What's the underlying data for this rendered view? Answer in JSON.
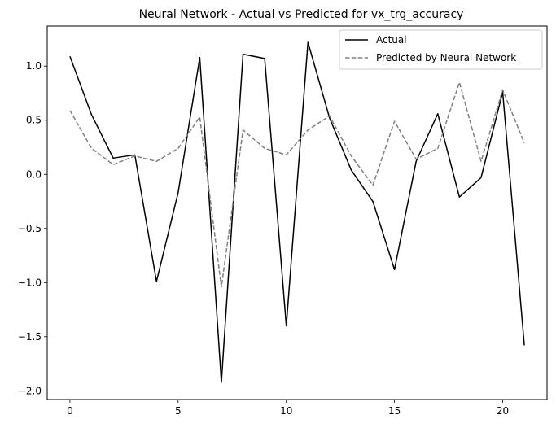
{
  "chart_data": {
    "type": "line",
    "title": "Neural Network - Actual vs Predicted for vx_trg_accuracy",
    "xlabel": "",
    "ylabel": "",
    "xlim": [
      -1.05,
      22.05
    ],
    "ylim": [
      -2.08,
      1.37
    ],
    "x_ticks": [
      0,
      5,
      10,
      15,
      20
    ],
    "x_tick_labels": [
      "0",
      "5",
      "10",
      "15",
      "20"
    ],
    "y_ticks": [
      -2.0,
      -1.5,
      -1.0,
      -0.5,
      0.0,
      0.5,
      1.0
    ],
    "y_tick_labels": [
      "−2.0",
      "−1.5",
      "−1.0",
      "−0.5",
      "0.0",
      "0.5",
      "1.0"
    ],
    "grid": false,
    "legend_position": "top-right",
    "x": [
      0,
      1,
      2,
      3,
      4,
      5,
      6,
      7,
      8,
      9,
      10,
      11,
      12,
      13,
      14,
      15,
      16,
      17,
      18,
      19,
      20,
      21
    ],
    "series": [
      {
        "name": "Actual",
        "color": "#000000",
        "style": "solid",
        "values": [
          1.09,
          0.55,
          0.15,
          0.18,
          -0.99,
          -0.17,
          1.08,
          -1.92,
          1.11,
          1.07,
          -1.4,
          1.22,
          0.52,
          0.04,
          -0.25,
          -0.88,
          0.12,
          0.56,
          -0.21,
          -0.03,
          0.76,
          -1.58
        ]
      },
      {
        "name": "Predicted by Neural Network",
        "color": "#808080",
        "style": "dashed",
        "values": [
          0.59,
          0.24,
          0.09,
          0.17,
          0.12,
          0.24,
          0.53,
          -1.04,
          0.41,
          0.24,
          0.18,
          0.41,
          0.54,
          0.17,
          -0.1,
          0.49,
          0.14,
          0.24,
          0.85,
          0.12,
          0.78,
          0.29
        ]
      }
    ]
  }
}
